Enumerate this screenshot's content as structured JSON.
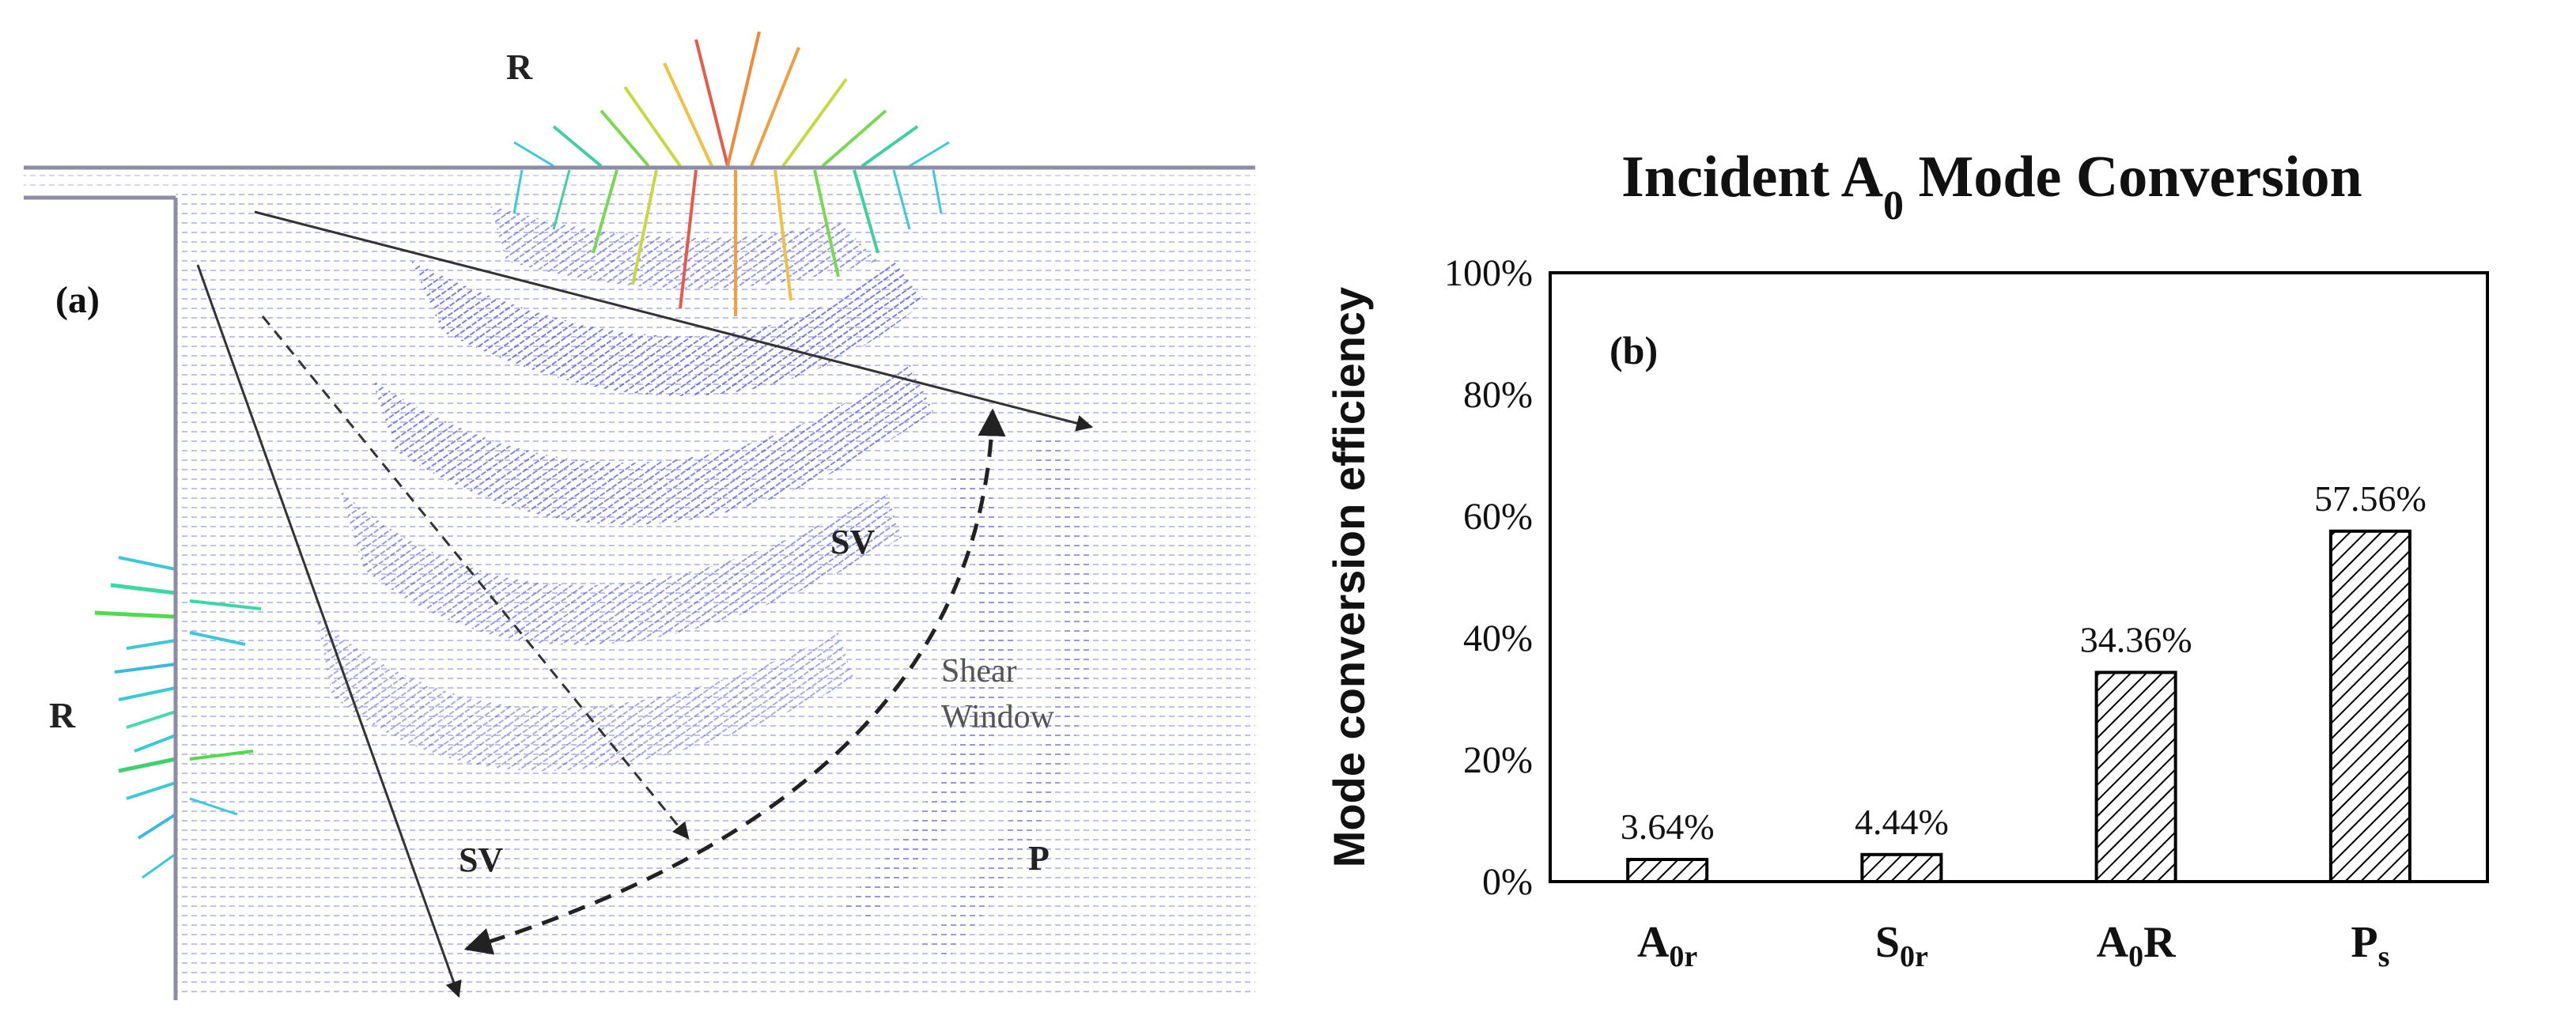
{
  "panel_a": {
    "label": "(a)",
    "wave_labels": {
      "r_top": "R",
      "r_left": "R",
      "sv_upper": "SV",
      "sv_lower": "SV",
      "p": "P"
    },
    "shear_window": {
      "line1": "Shear",
      "line2": "Window"
    },
    "colors": {
      "field": "#5a5acc",
      "frame": "#8c8ca8",
      "arrow": "#333333"
    }
  },
  "chart_data": {
    "type": "bar",
    "panel_label": "(b)",
    "title": {
      "prefix": "Incident A",
      "sub": "0",
      "suffix": " Mode Conversion"
    },
    "xlabel": "",
    "ylabel": "Mode conversion efficiency",
    "ylim": [
      0,
      100
    ],
    "yticks": [
      "0%",
      "20%",
      "40%",
      "60%",
      "80%",
      "100%"
    ],
    "categories": [
      {
        "main": "A",
        "sub": "0r",
        "post": ""
      },
      {
        "main": "S",
        "sub": "0r",
        "post": ""
      },
      {
        "main": "A",
        "sub": "0",
        "post": "R"
      },
      {
        "main": "P",
        "sub": "s",
        "post": ""
      }
    ],
    "values": [
      3.64,
      4.44,
      34.36,
      57.56
    ],
    "data_labels": [
      "3.64%",
      "4.44%",
      "34.36%",
      "57.56%"
    ],
    "bar_fill": "hatched",
    "grid": false
  }
}
